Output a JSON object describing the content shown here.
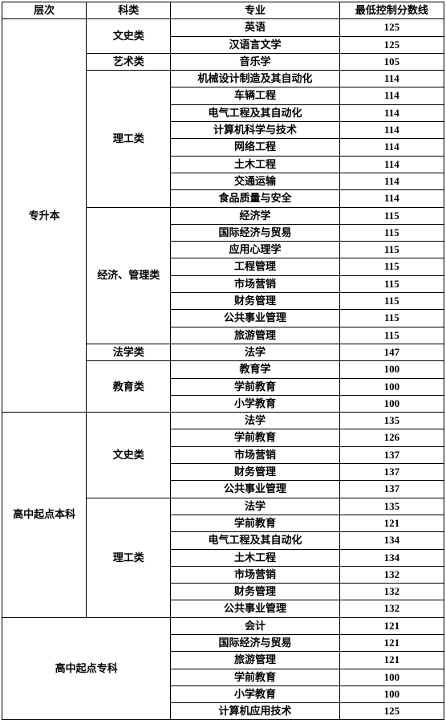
{
  "headers": [
    "层次",
    "科类",
    "专业",
    "最低控制分数线"
  ],
  "levels": [
    {
      "name": "专升本",
      "categories": [
        {
          "name": "文史类",
          "majors": [
            {
              "name": "英语",
              "score": 125
            },
            {
              "name": "汉语言文学",
              "score": 125
            }
          ]
        },
        {
          "name": "艺术类",
          "majors": [
            {
              "name": "音乐学",
              "score": 105
            }
          ]
        },
        {
          "name": "理工类",
          "majors": [
            {
              "name": "机械设计制造及其自动化",
              "score": 114
            },
            {
              "name": "车辆工程",
              "score": 114
            },
            {
              "name": "电气工程及其自动化",
              "score": 114
            },
            {
              "name": "计算机科学与技术",
              "score": 114
            },
            {
              "name": "网络工程",
              "score": 114
            },
            {
              "name": "土木工程",
              "score": 114
            },
            {
              "name": "交通运输",
              "score": 114
            },
            {
              "name": "食品质量与安全",
              "score": 114
            }
          ]
        },
        {
          "name": "经济、管理类",
          "majors": [
            {
              "name": "经济学",
              "score": 115
            },
            {
              "name": "国际经济与贸易",
              "score": 115
            },
            {
              "name": "应用心理学",
              "score": 115
            },
            {
              "name": "工程管理",
              "score": 115
            },
            {
              "name": "市场营销",
              "score": 115
            },
            {
              "name": "财务管理",
              "score": 115
            },
            {
              "name": "公共事业管理",
              "score": 115
            },
            {
              "name": "旅游管理",
              "score": 115
            }
          ]
        },
        {
          "name": "法学类",
          "majors": [
            {
              "name": "法学",
              "score": 147
            }
          ]
        },
        {
          "name": "教育类",
          "majors": [
            {
              "name": "教育学",
              "score": 100
            },
            {
              "name": "学前教育",
              "score": 100
            },
            {
              "name": "小学教育",
              "score": 100
            }
          ]
        }
      ]
    },
    {
      "name": "高中起点本科",
      "categories": [
        {
          "name": "文史类",
          "majors": [
            {
              "name": "法学",
              "score": 135
            },
            {
              "name": "学前教育",
              "score": 126
            },
            {
              "name": "市场营销",
              "score": 137
            },
            {
              "name": "财务管理",
              "score": 137
            },
            {
              "name": "公共事业管理",
              "score": 137
            }
          ]
        },
        {
          "name": "理工类",
          "majors": [
            {
              "name": "法学",
              "score": 135
            },
            {
              "name": "学前教育",
              "score": 121
            },
            {
              "name": "电气工程及其自动化",
              "score": 134
            },
            {
              "name": "土木工程",
              "score": 134
            },
            {
              "name": "市场营销",
              "score": 132
            },
            {
              "name": "财务管理",
              "score": 132
            },
            {
              "name": "公共事业管理",
              "score": 132
            }
          ]
        }
      ]
    },
    {
      "name": "高中起点专科",
      "spanCategory": true,
      "categories": [
        {
          "name": "",
          "majors": [
            {
              "name": "会计",
              "score": 121
            },
            {
              "name": "国际经济与贸易",
              "score": 121
            },
            {
              "name": "旅游管理",
              "score": 121
            },
            {
              "name": "学前教育",
              "score": 100
            },
            {
              "name": "小学教育",
              "score": 100
            },
            {
              "name": "计算机应用技术",
              "score": 125
            }
          ]
        }
      ]
    }
  ]
}
